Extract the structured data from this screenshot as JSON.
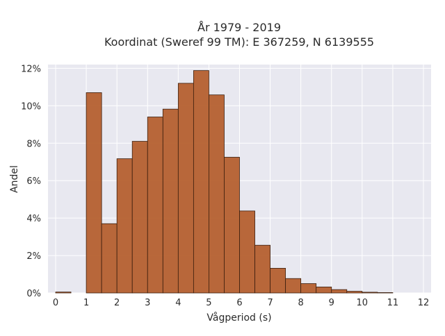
{
  "chart_data": {
    "type": "bar",
    "title": "År 1979 - 2019",
    "subtitle": "Koordinat (Sweref 99 TM): E 367259, N 6139555",
    "xlabel": "Vågperiod (s)",
    "ylabel": "Andel",
    "bin_width": 0.5,
    "bin_starts": [
      0,
      0.5,
      1,
      1.5,
      2,
      2.5,
      3,
      3.5,
      4,
      4.5,
      5,
      5.5,
      6,
      6.5,
      7,
      7.5,
      8,
      8.5,
      9,
      9.5,
      10,
      10.5,
      11,
      11.5
    ],
    "values": [
      0.0005,
      0,
      0.107,
      0.037,
      0.0717,
      0.081,
      0.094,
      0.0982,
      0.112,
      0.1188,
      0.1058,
      0.0725,
      0.0438,
      0.0255,
      0.0132,
      0.0077,
      0.005,
      0.0032,
      0.0018,
      0.0009,
      0.0004,
      0.0002,
      0,
      0
    ],
    "xlim": [
      -0.25,
      12.25
    ],
    "ylim": [
      0,
      0.122
    ],
    "x_ticks": [
      0,
      1,
      2,
      3,
      4,
      5,
      6,
      7,
      8,
      9,
      10,
      11,
      12
    ],
    "x_tick_labels": [
      "0",
      "1",
      "2",
      "3",
      "4",
      "5",
      "6",
      "7",
      "8",
      "9",
      "10",
      "11",
      "12"
    ],
    "y_ticks": [
      0,
      0.02,
      0.04,
      0.06,
      0.08,
      0.1,
      0.12
    ],
    "y_tick_labels": [
      "0%",
      "2%",
      "4%",
      "6%",
      "8%",
      "10%",
      "12%"
    ],
    "grid": true,
    "bar_color": "#b5602f",
    "bar_edge_color": "#3a1e0e",
    "plot_bg_color": "#e8e8f0"
  }
}
